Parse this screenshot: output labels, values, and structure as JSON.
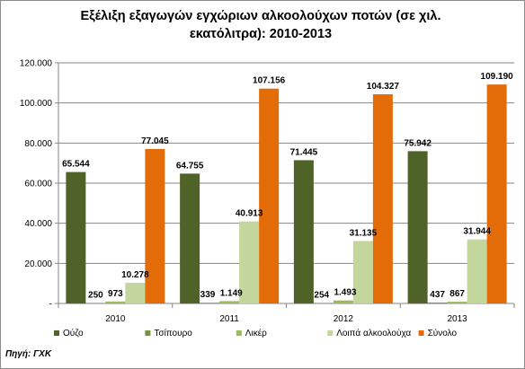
{
  "chart_data": {
    "type": "bar",
    "title": "Εξέλιξη εξαγωγών εγχώριων αλκοολούχων ποτών (σε χιλ. εκατόλιτρα): 2010-2013",
    "title_lines": [
      "Εξέλιξη εξαγωγών εγχώριων αλκοολούχων ποτών (σε χιλ.",
      "εκατόλιτρα): 2010-2013"
    ],
    "categories": [
      "2010",
      "2011",
      "2012",
      "2013"
    ],
    "ylim": [
      0,
      120000
    ],
    "yticks": [
      0,
      20000,
      40000,
      60000,
      80000,
      100000,
      120000
    ],
    "ytick_labels": [
      "-",
      "20.000",
      "40.000",
      "60.000",
      "80.000",
      "100.000",
      "120.000"
    ],
    "grid": true,
    "legend_position": "bottom",
    "series": [
      {
        "name": "Ούζο",
        "color": "#4f6228",
        "values": [
          65544,
          64755,
          71445,
          75942
        ],
        "labels": [
          "65.544",
          "64.755",
          "71.445",
          "75.942"
        ]
      },
      {
        "name": "Τσίπουρο",
        "color": "#77933c",
        "values": [
          250,
          339,
          254,
          437
        ],
        "labels": [
          "250",
          "339",
          "254",
          "437"
        ]
      },
      {
        "name": "Λικέρ",
        "color": "#9bbb59",
        "values": [
          973,
          1149,
          1493,
          867
        ],
        "labels": [
          "973",
          "1.149",
          "1.493",
          "867"
        ]
      },
      {
        "name": "Λοιπά αλκοολούχα",
        "color": "#c3d69b",
        "values": [
          10278,
          40913,
          31135,
          31944
        ],
        "labels": [
          "10.278",
          "40.913",
          "31.135",
          "31.944"
        ]
      },
      {
        "name": "Σύνολο",
        "color": "#e36c09",
        "values": [
          77045,
          107156,
          104327,
          109190
        ],
        "labels": [
          "77.045",
          "107.156",
          "104.327",
          "109.190"
        ]
      }
    ]
  },
  "source_note": "Πηγή: ΓΧΚ"
}
